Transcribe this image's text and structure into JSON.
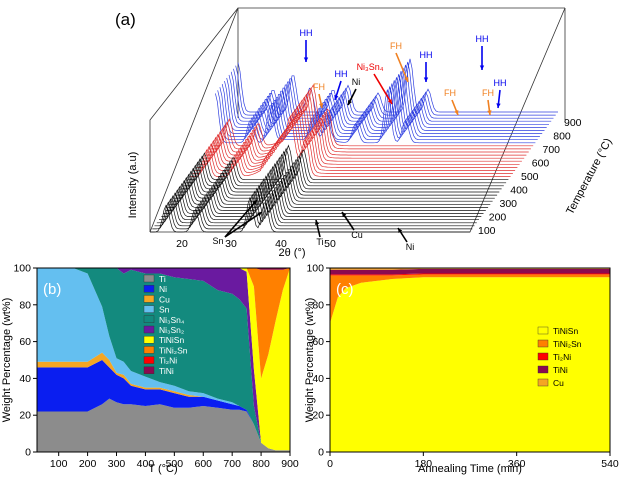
{
  "colors": {
    "Ti": "#8c8c8c",
    "Ni": "#0a1ef0",
    "Cu": "#f5a623",
    "Sn": "#64bff0",
    "Ni3Sn4": "#138a7e",
    "Ni3Sn2": "#6a1aa0",
    "TiNiSn": "#ffff00",
    "TiNi2Sn": "#ff8000",
    "Ti2Ni": "#ff0000",
    "TiNi": "#8b0a50",
    "HH": "#0000ee",
    "FH": "#f08020",
    "ni3sn4_arrow": "#ee0000",
    "trace_black": "#111111",
    "trace_red": "#e03030",
    "trace_blue": "#3040e0"
  },
  "panel_a": {
    "label": "(a)",
    "ylabel": "Intensity (a.u)",
    "xlabel": "2θ (°)",
    "zlabel": "Temperature (°C)",
    "x_ticks": [
      "20",
      "30",
      "40",
      "50"
    ],
    "z_ticks": [
      "100",
      "200",
      "300",
      "400",
      "500",
      "600",
      "700",
      "800",
      "900"
    ],
    "annotations": {
      "HH1": "HH",
      "HH2": "HH",
      "HH3": "HH",
      "HH4": "HH",
      "HH5": "HH",
      "FH1": "FH",
      "FH2": "FH",
      "FH3": "FH",
      "FH4": "FH",
      "Ni_top": "Ni",
      "Ni3Sn4": "Ni₃Sn₄",
      "Sn": "Sn",
      "Ti": "Ti",
      "Cu": "Cu",
      "Ni_bottom": "Ni"
    }
  },
  "chart_data": [
    {
      "type": "area",
      "panel": "(b)",
      "xlabel": "T (°C)",
      "ylabel": "Weight Percentage (wt%)",
      "xlim": [
        25,
        900
      ],
      "ylim": [
        0,
        100
      ],
      "x_ticks": [
        "100",
        "200",
        "300",
        "400",
        "500",
        "600",
        "700",
        "800",
        "900"
      ],
      "y_ticks": [
        "0",
        "20",
        "40",
        "60",
        "80",
        "100"
      ],
      "legend": [
        "Ti",
        "Ni",
        "Cu",
        "Sn",
        "Ni₃Sn₄",
        "Ni₃Sn₂",
        "TiNiSn",
        "TiNi₂Sn",
        "Ti₂Ni",
        "TiNi"
      ],
      "legend_keys": [
        "Ti",
        "Ni",
        "Cu",
        "Sn",
        "Ni3Sn4",
        "Ni3Sn2",
        "TiNiSn",
        "TiNi2Sn",
        "Ti2Ni",
        "TiNi"
      ],
      "legend_placement": "center",
      "x": [
        25,
        100,
        150,
        200,
        250,
        275,
        300,
        325,
        350,
        400,
        450,
        500,
        550,
        600,
        650,
        700,
        725,
        750,
        775,
        800,
        825,
        850,
        875,
        900
      ],
      "series": [
        {
          "key": "Ti",
          "values": [
            22,
            22,
            22,
            22,
            26,
            29,
            27,
            26,
            26,
            25,
            26,
            24,
            24,
            25,
            24,
            23,
            23,
            22,
            15,
            5,
            2,
            1,
            1,
            1
          ]
        },
        {
          "key": "Ni",
          "values": [
            24,
            24,
            24,
            24,
            24,
            17,
            15,
            14,
            10,
            9,
            8,
            8,
            6,
            5,
            4,
            3,
            2,
            1,
            0,
            0,
            0,
            0,
            0,
            0
          ]
        },
        {
          "key": "Cu",
          "values": [
            3,
            3,
            3,
            3,
            4,
            4,
            1,
            2,
            1,
            1,
            1,
            1,
            1,
            0,
            0,
            0,
            0,
            0,
            0,
            0,
            0,
            0,
            0,
            0
          ]
        },
        {
          "key": "Sn",
          "values": [
            51,
            51,
            51,
            48,
            25,
            13,
            8,
            7,
            7,
            6,
            3,
            3,
            2,
            2,
            1,
            1,
            0,
            0,
            0,
            0,
            0,
            0,
            0,
            0
          ]
        },
        {
          "key": "Ni3Sn4",
          "values": [
            0,
            0,
            0,
            3,
            21,
            37,
            49,
            48,
            55,
            56,
            59,
            59,
            61,
            61,
            59,
            59,
            58,
            55,
            10,
            0,
            0,
            0,
            0,
            0
          ]
        },
        {
          "key": "Ni3Sn2",
          "values": [
            0,
            0,
            0,
            0,
            0,
            0,
            0,
            3,
            1,
            3,
            3,
            5,
            6,
            7,
            12,
            14,
            17,
            20,
            20,
            0,
            0,
            0,
            0,
            0
          ]
        },
        {
          "key": "TiNiSn",
          "values": [
            0,
            0,
            0,
            0,
            0,
            0,
            0,
            0,
            0,
            0,
            0,
            0,
            0,
            0,
            0,
            0,
            0,
            2,
            45,
            35,
            51,
            70,
            87,
            99
          ]
        },
        {
          "key": "TiNi2Sn",
          "values": [
            0,
            0,
            0,
            0,
            0,
            0,
            0,
            0,
            0,
            0,
            0,
            0,
            0,
            0,
            0,
            0,
            0,
            0,
            10,
            59,
            46,
            28,
            11,
            0
          ]
        },
        {
          "key": "Ti2Ni",
          "values": [
            0,
            0,
            0,
            0,
            0,
            0,
            0,
            0,
            0,
            0,
            0,
            0,
            0,
            0,
            0,
            0,
            0,
            0,
            0,
            0,
            0,
            0,
            0,
            0
          ]
        },
        {
          "key": "TiNi",
          "values": [
            0,
            0,
            0,
            0,
            0,
            0,
            0,
            0,
            0,
            0,
            0,
            0,
            0,
            0,
            0,
            0,
            0,
            0,
            0,
            1,
            1,
            1,
            1,
            0
          ]
        }
      ]
    },
    {
      "type": "area",
      "panel": "(c)",
      "xlabel": "Annealing Time (min)",
      "ylabel": "Weight Percentage (wt%)",
      "xlim": [
        0,
        540
      ],
      "ylim": [
        0,
        100
      ],
      "x_ticks": [
        "0",
        "180",
        "360",
        "540"
      ],
      "y_ticks": [
        "0",
        "20",
        "40",
        "60",
        "80",
        "100"
      ],
      "legend": [
        "TiNiSn",
        "TiNi₂Sn",
        "Ti₂Ni",
        "TiNi",
        "Cu"
      ],
      "legend_keys": [
        "TiNiSn",
        "TiNi2Sn",
        "Ti2Ni",
        "TiNi",
        "Cu"
      ],
      "legend_placement": "right",
      "x": [
        0,
        15,
        30,
        60,
        90,
        120,
        180,
        240,
        300,
        360,
        420,
        480,
        540
      ],
      "series": [
        {
          "key": "TiNiSn",
          "values": [
            70,
            84,
            89,
            92,
            93,
            94,
            95,
            95,
            95,
            95,
            95,
            95,
            95
          ]
        },
        {
          "key": "TiNi2Sn",
          "values": [
            26,
            12,
            7,
            4,
            3,
            2,
            1.5,
            1.5,
            1.5,
            1.5,
            1.5,
            1.5,
            1.5
          ]
        },
        {
          "key": "Ti2Ni",
          "values": [
            0.5,
            0.5,
            0.5,
            0.5,
            0.5,
            0.5,
            0.5,
            0.5,
            0.5,
            0.5,
            0.5,
            0.5,
            0.5
          ]
        },
        {
          "key": "TiNi",
          "values": [
            2.5,
            2.5,
            2.5,
            2.5,
            2.5,
            2.5,
            2.5,
            2.5,
            2.5,
            2.5,
            2.5,
            2.5,
            2.5
          ]
        },
        {
          "key": "Cu",
          "values": [
            1,
            1,
            1,
            1,
            1,
            1,
            0.5,
            0.5,
            0.5,
            0.5,
            0.5,
            0.5,
            0.5
          ]
        }
      ]
    }
  ]
}
